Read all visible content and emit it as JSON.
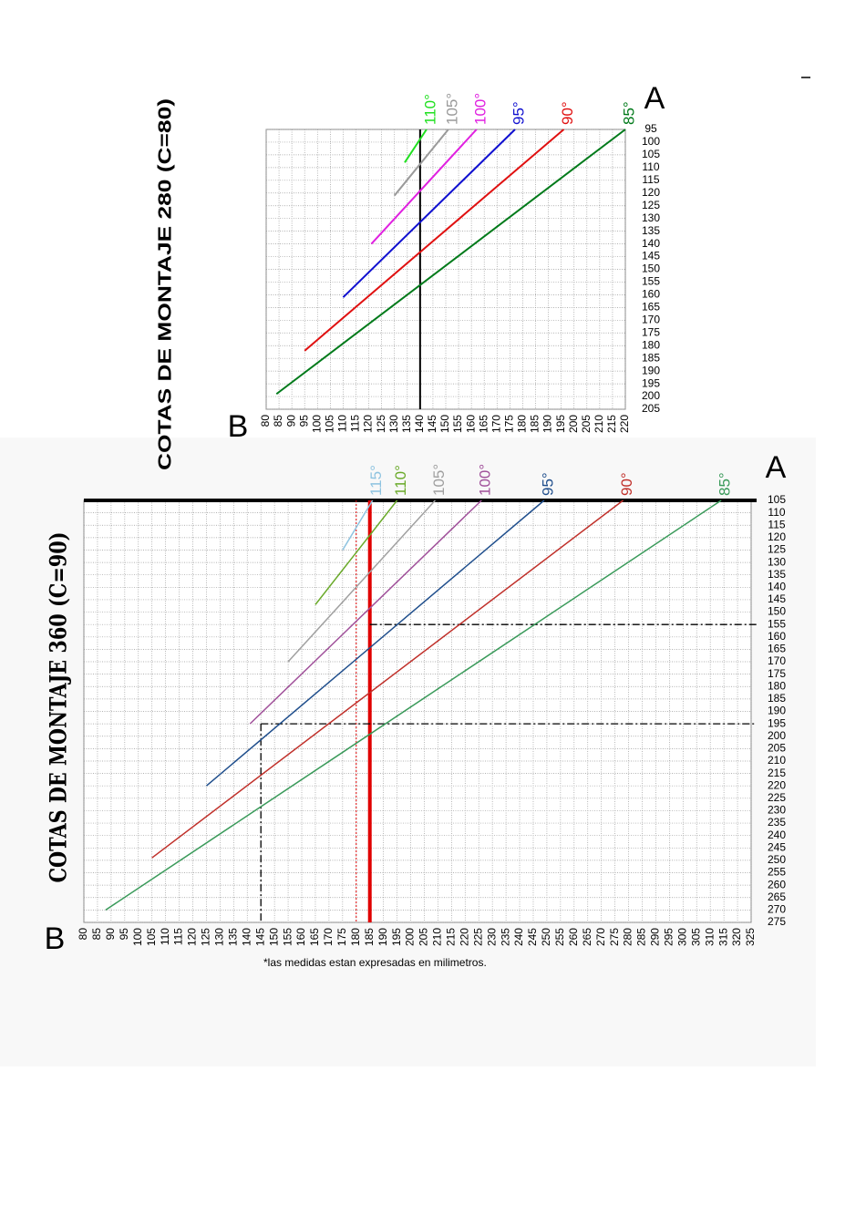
{
  "chart_data": [
    {
      "type": "line",
      "title": "COTAS DE MONTAJE 280 (C=80)",
      "xlabel": "B",
      "ylabel": "A",
      "xlim": [
        80,
        220
      ],
      "ylim": [
        95,
        205
      ],
      "y_reversed": true,
      "grid": true,
      "xticks": [
        80,
        85,
        90,
        95,
        100,
        105,
        110,
        115,
        120,
        125,
        130,
        135,
        140,
        145,
        150,
        155,
        160,
        165,
        170,
        175,
        180,
        185,
        190,
        195,
        200,
        205,
        210,
        215,
        220
      ],
      "yticks": [
        95,
        100,
        105,
        110,
        115,
        120,
        125,
        130,
        135,
        140,
        145,
        150,
        155,
        160,
        165,
        170,
        175,
        180,
        185,
        190,
        195,
        200,
        205
      ],
      "series": [
        {
          "name": "85°",
          "color": "#007a1a",
          "x": [
            84,
            220
          ],
          "values": [
            199,
            95
          ]
        },
        {
          "name": "90°",
          "color": "#e01010",
          "x": [
            95,
            196
          ],
          "values": [
            182,
            95
          ]
        },
        {
          "name": "95°",
          "color": "#1010d0",
          "x": [
            110,
            177
          ],
          "values": [
            161,
            95
          ]
        },
        {
          "name": "100°",
          "color": "#e020e0",
          "x": [
            121,
            162
          ],
          "values": [
            140,
            95
          ]
        },
        {
          "name": "105°",
          "color": "#9a9a9a",
          "x": [
            130,
            151
          ],
          "values": [
            121,
            95
          ]
        },
        {
          "name": "110°",
          "color": "#20e020",
          "x": [
            134,
            142.5
          ],
          "values": [
            108,
            95
          ]
        }
      ],
      "reference_lines": [
        {
          "axis": "x",
          "value": 140,
          "color": "#000000",
          "width": 2,
          "style": "solid"
        }
      ]
    },
    {
      "type": "line",
      "title": "COTAS DE MONTAJE 360 (C=90)",
      "xlabel": "B",
      "ylabel": "A",
      "xlim": [
        80,
        325
      ],
      "ylim": [
        105,
        275
      ],
      "y_reversed": true,
      "grid": true,
      "xticks": [
        80,
        85,
        90,
        95,
        100,
        105,
        110,
        115,
        120,
        125,
        130,
        135,
        140,
        145,
        150,
        155,
        160,
        165,
        170,
        175,
        180,
        185,
        190,
        195,
        200,
        205,
        210,
        215,
        220,
        225,
        230,
        235,
        240,
        245,
        250,
        255,
        260,
        265,
        270,
        275,
        280,
        285,
        290,
        295,
        300,
        305,
        310,
        315,
        320,
        325
      ],
      "yticks": [
        105,
        110,
        115,
        120,
        125,
        130,
        135,
        140,
        145,
        150,
        155,
        160,
        165,
        170,
        175,
        180,
        185,
        190,
        195,
        200,
        205,
        210,
        215,
        220,
        225,
        230,
        235,
        240,
        245,
        250,
        255,
        260,
        265,
        270,
        275
      ],
      "series": [
        {
          "name": "85°",
          "color": "#3a9a5a",
          "x": [
            88,
            314
          ],
          "values": [
            270,
            105
          ]
        },
        {
          "name": "90°",
          "color": "#c0302a",
          "x": [
            105,
            278
          ],
          "values": [
            249,
            105
          ]
        },
        {
          "name": "95°",
          "color": "#1f4e8c",
          "x": [
            125,
            249
          ],
          "values": [
            220,
            105
          ]
        },
        {
          "name": "100°",
          "color": "#a0509a",
          "x": [
            141,
            226
          ],
          "values": [
            195,
            105
          ]
        },
        {
          "name": "105°",
          "color": "#a0a0a0",
          "x": [
            155,
            209
          ],
          "values": [
            170,
            105
          ]
        },
        {
          "name": "110°",
          "color": "#6aaa2a",
          "x": [
            165,
            195
          ],
          "values": [
            147,
            105
          ]
        },
        {
          "name": "115°",
          "color": "#8ec3e0",
          "x": [
            175,
            186
          ],
          "values": [
            125,
            105
          ]
        }
      ],
      "reference_lines": [
        {
          "axis": "x",
          "value": 185,
          "color": "#e00000",
          "width": 4,
          "style": "solid"
        },
        {
          "axis": "x",
          "value": 180,
          "color": "#e00000",
          "width": 1,
          "style": "dotted"
        },
        {
          "axis": "y",
          "value": 155,
          "from": 185,
          "color": "#000000",
          "width": 1.3,
          "style": "dashdot"
        },
        {
          "axis": "y",
          "value": 195,
          "from": 145,
          "color": "#000000",
          "width": 1.3,
          "style": "dashdot"
        },
        {
          "axis": "x",
          "value": 145,
          "from": 195,
          "color": "#000000",
          "width": 1.3,
          "style": "dashdot"
        }
      ],
      "footnote": "*las medidas estan expresadas en milimetros."
    }
  ]
}
